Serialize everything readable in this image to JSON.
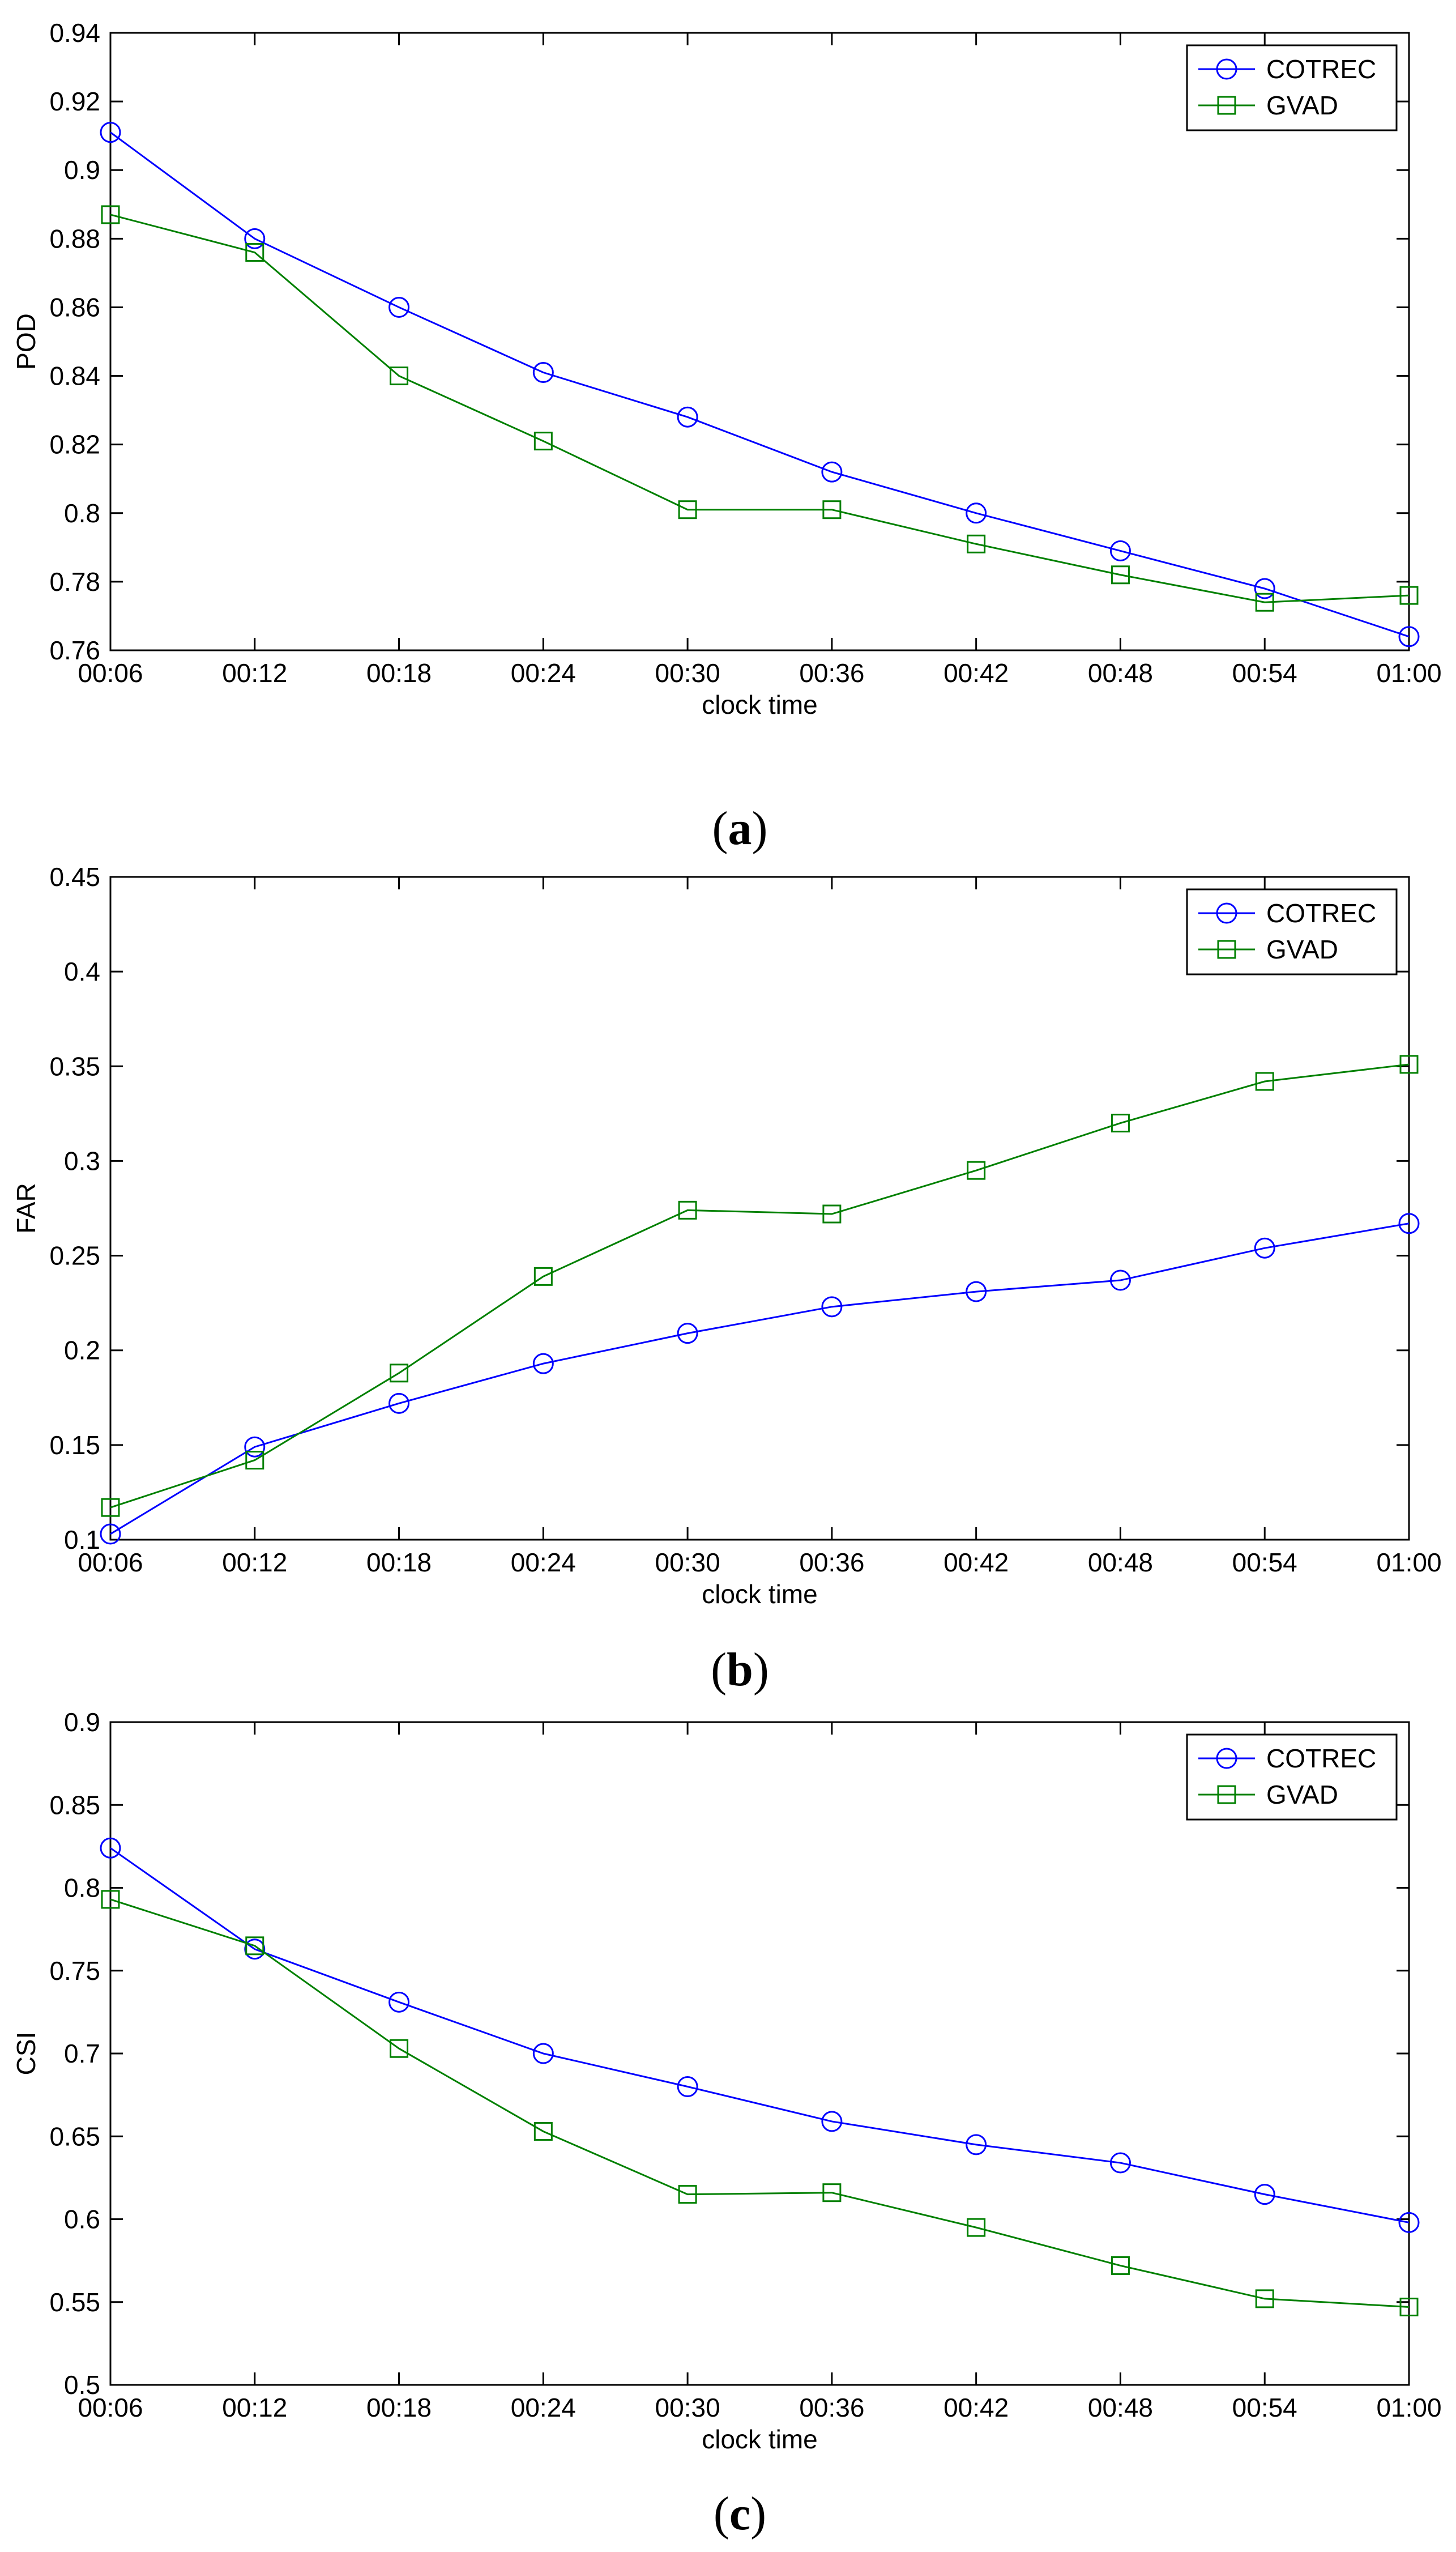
{
  "colors": {
    "COTREC": "#0000ff",
    "GVAD": "#008000"
  },
  "chart_data": [
    {
      "type": "line",
      "panel_label": "a",
      "title": "",
      "xlabel": "clock time",
      "ylabel": "POD",
      "categories": [
        "00:06",
        "00:12",
        "00:18",
        "00:24",
        "00:30",
        "00:36",
        "00:42",
        "00:48",
        "00:54",
        "01:00"
      ],
      "ylim": [
        0.76,
        0.94
      ],
      "yticks": [
        0.76,
        0.78,
        0.8,
        0.82,
        0.84,
        0.86,
        0.88,
        0.9,
        0.92,
        0.94
      ],
      "ytick_labels": [
        "0.76",
        "0.78",
        "0.8",
        "0.82",
        "0.84",
        "0.86",
        "0.88",
        "0.9",
        "0.92",
        "0.94"
      ],
      "grid": false,
      "legend_position": "top-right",
      "series": [
        {
          "name": "COTREC",
          "marker": "circle",
          "values": [
            0.911,
            0.88,
            0.86,
            0.841,
            0.828,
            0.812,
            0.8,
            0.789,
            0.778,
            0.764
          ]
        },
        {
          "name": "GVAD",
          "marker": "square",
          "values": [
            0.887,
            0.876,
            0.84,
            0.821,
            0.801,
            0.801,
            0.791,
            0.782,
            0.774,
            0.776
          ]
        }
      ]
    },
    {
      "type": "line",
      "panel_label": "b",
      "title": "",
      "xlabel": "clock time",
      "ylabel": "FAR",
      "categories": [
        "00:06",
        "00:12",
        "00:18",
        "00:24",
        "00:30",
        "00:36",
        "00:42",
        "00:48",
        "00:54",
        "01:00"
      ],
      "ylim": [
        0.1,
        0.45
      ],
      "yticks": [
        0.1,
        0.15,
        0.2,
        0.25,
        0.3,
        0.35,
        0.4,
        0.45
      ],
      "ytick_labels": [
        "0.1",
        "0.15",
        "0.2",
        "0.25",
        "0.3",
        "0.35",
        "0.4",
        "0.45"
      ],
      "grid": false,
      "legend_position": "top-right",
      "series": [
        {
          "name": "COTREC",
          "marker": "circle",
          "values": [
            0.103,
            0.149,
            0.172,
            0.193,
            0.209,
            0.223,
            0.231,
            0.237,
            0.254,
            0.267
          ]
        },
        {
          "name": "GVAD",
          "marker": "square",
          "values": [
            0.117,
            0.142,
            0.188,
            0.239,
            0.274,
            0.272,
            0.295,
            0.32,
            0.342,
            0.351
          ]
        }
      ]
    },
    {
      "type": "line",
      "panel_label": "c",
      "title": "",
      "xlabel": "clock time",
      "ylabel": "CSI",
      "categories": [
        "00:06",
        "00:12",
        "00:18",
        "00:24",
        "00:30",
        "00:36",
        "00:42",
        "00:48",
        "00:54",
        "01:00"
      ],
      "ylim": [
        0.5,
        0.9
      ],
      "yticks": [
        0.5,
        0.55,
        0.6,
        0.65,
        0.7,
        0.75,
        0.8,
        0.85,
        0.9
      ],
      "ytick_labels": [
        "0.5",
        "0.55",
        "0.6",
        "0.65",
        "0.7",
        "0.75",
        "0.8",
        "0.85",
        "0.9"
      ],
      "grid": false,
      "legend_position": "top-right",
      "series": [
        {
          "name": "COTREC",
          "marker": "circle",
          "values": [
            0.824,
            0.763,
            0.731,
            0.7,
            0.68,
            0.659,
            0.645,
            0.634,
            0.615,
            0.598
          ]
        },
        {
          "name": "GVAD",
          "marker": "square",
          "values": [
            0.793,
            0.765,
            0.703,
            0.653,
            0.615,
            0.616,
            0.595,
            0.572,
            0.552,
            0.547
          ]
        }
      ]
    }
  ]
}
